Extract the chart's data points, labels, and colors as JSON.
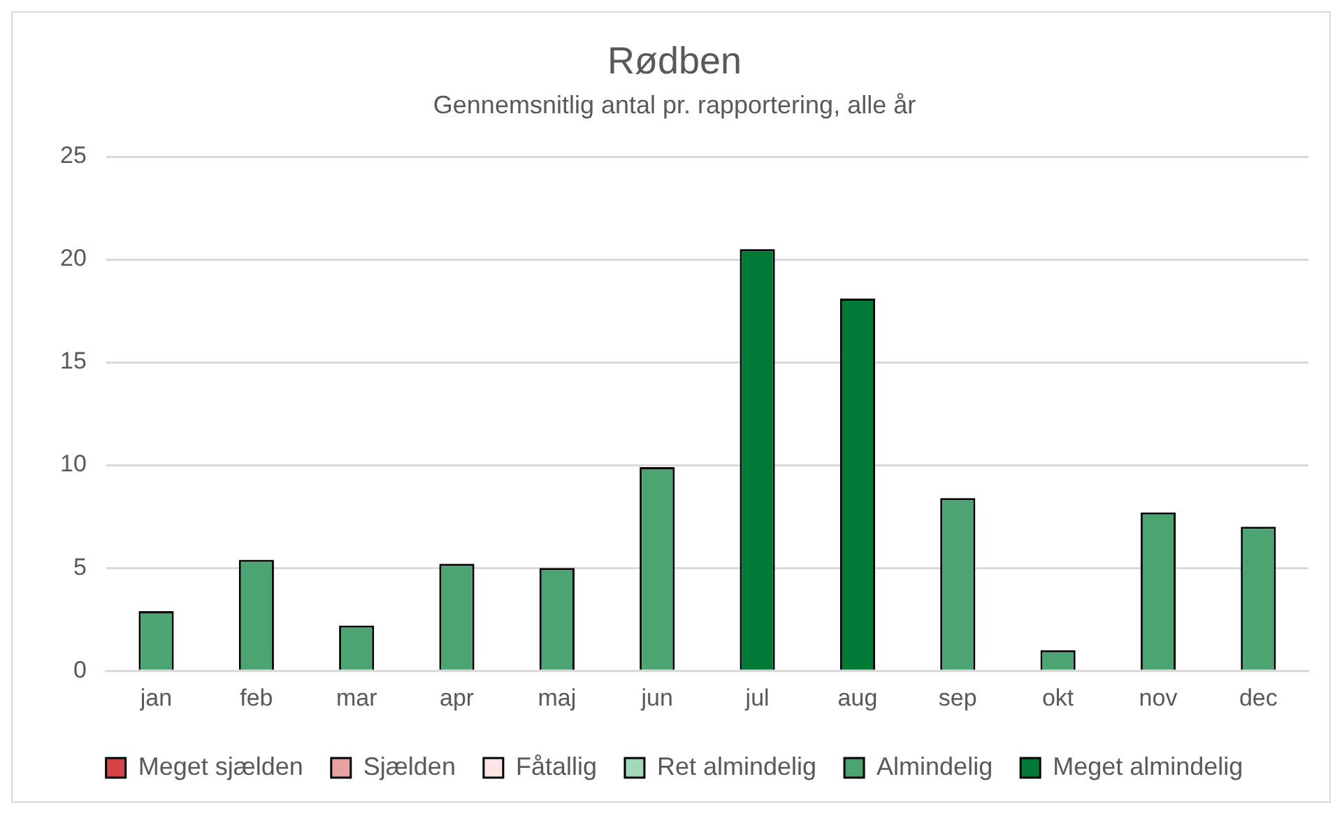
{
  "chart_data": {
    "type": "bar",
    "title": "Rødben",
    "subtitle": "Gennemsnitlig antal pr. rapportering, alle år",
    "categories": [
      "jan",
      "feb",
      "mar",
      "apr",
      "maj",
      "jun",
      "jul",
      "aug",
      "sep",
      "okt",
      "nov",
      "dec"
    ],
    "stacked": true,
    "ylim": [
      0,
      25
    ],
    "yticks": [
      0,
      5,
      10,
      15,
      20,
      25
    ],
    "grid": "y",
    "legend": "bottom",
    "series": [
      {
        "name": "Meget sjælden",
        "color": "#d64545",
        "values": [
          null,
          null,
          null,
          null,
          null,
          null,
          null,
          null,
          null,
          null,
          null,
          null
        ]
      },
      {
        "name": "Sjælden",
        "color": "#e8a0a0",
        "values": [
          null,
          null,
          null,
          null,
          null,
          null,
          null,
          null,
          null,
          null,
          null,
          null
        ]
      },
      {
        "name": "Fåtallig",
        "color": "#fbe5e5",
        "values": [
          null,
          null,
          null,
          null,
          null,
          null,
          null,
          null,
          null,
          null,
          null,
          null
        ]
      },
      {
        "name": "Ret almindelig",
        "color": "#a3d9bb",
        "values": [
          null,
          null,
          null,
          null,
          null,
          null,
          null,
          null,
          null,
          null,
          null,
          null
        ]
      },
      {
        "name": "Almindelig",
        "color": "#4ca473",
        "values": [
          2.9,
          5.4,
          2.2,
          5.2,
          5.0,
          9.9,
          null,
          null,
          8.4,
          1.0,
          7.7,
          7.0
        ]
      },
      {
        "name": "Meget almindelig",
        "color": "#007a37",
        "values": [
          null,
          null,
          null,
          null,
          null,
          null,
          20.5,
          18.1,
          null,
          null,
          null,
          null
        ]
      }
    ]
  }
}
